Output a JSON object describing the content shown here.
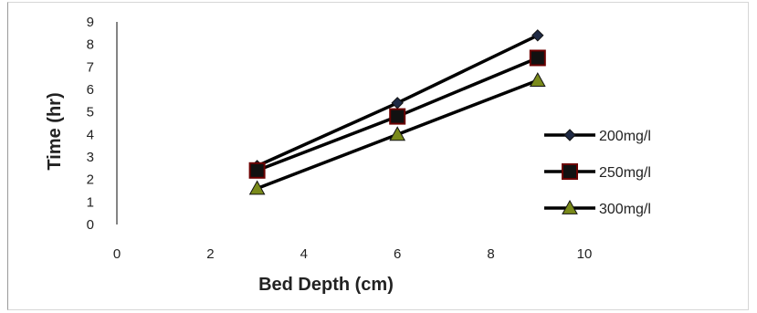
{
  "chart_data": {
    "type": "line",
    "title": "",
    "xlabel": "Bed Depth (cm)",
    "ylabel": "Time (hr)",
    "xlim": [
      0,
      10
    ],
    "ylim": [
      0,
      9
    ],
    "xticks": [
      0,
      2,
      4,
      6,
      8,
      10
    ],
    "yticks": [
      0,
      1,
      2,
      3,
      4,
      5,
      6,
      7,
      8,
      9
    ],
    "grid": false,
    "legend_position": "right",
    "x": [
      3,
      6,
      9
    ],
    "series": [
      {
        "name": "200mg/l",
        "values": [
          2.6,
          5.4,
          8.4
        ],
        "marker": "diamond",
        "line_color": "#000000",
        "marker_color": "#1f2a44"
      },
      {
        "name": "250mg/l",
        "values": [
          2.4,
          4.8,
          7.4
        ],
        "marker": "square",
        "line_color": "#000000",
        "marker_color": "#6b0000"
      },
      {
        "name": "300mg/l",
        "values": [
          1.6,
          4.0,
          6.4
        ],
        "marker": "triangle",
        "line_color": "#000000",
        "marker_color": "#7a8a1a"
      }
    ]
  }
}
